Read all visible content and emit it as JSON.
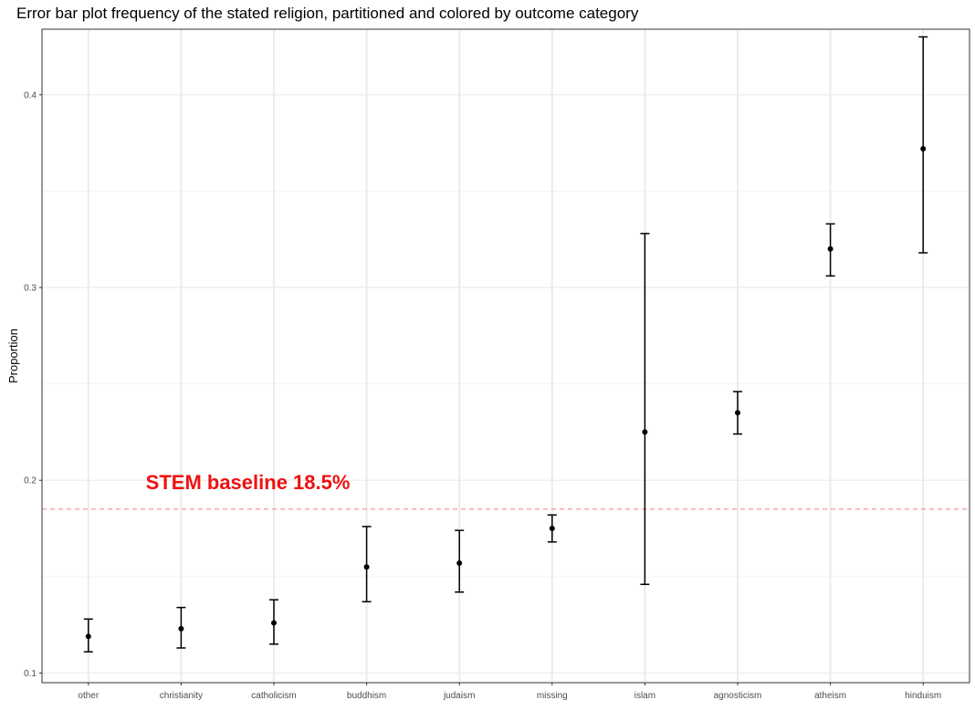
{
  "chart_data": {
    "type": "scatter",
    "title": "Error bar plot frequency of the stated religion, partitioned and colored by outcome category",
    "xlabel": "",
    "ylabel": "Proportion",
    "categories": [
      "other",
      "christianity",
      "catholicism",
      "buddhism",
      "judaism",
      "missing",
      "islam",
      "agnosticism",
      "atheism",
      "hinduism"
    ],
    "series": [
      {
        "values": [
          0.119,
          0.123,
          0.126,
          0.155,
          0.157,
          0.175,
          0.225,
          0.235,
          0.32,
          0.372
        ],
        "lower": [
          0.111,
          0.113,
          0.115,
          0.137,
          0.142,
          0.168,
          0.146,
          0.224,
          0.306,
          0.318
        ],
        "upper": [
          0.128,
          0.134,
          0.138,
          0.176,
          0.174,
          0.182,
          0.328,
          0.246,
          0.333,
          0.43
        ]
      }
    ],
    "ylim": [
      0.095,
      0.434
    ],
    "yticks": [
      0.1,
      0.2,
      0.3,
      0.4
    ],
    "ytick_labels": [
      "0.1",
      "0.2",
      "0.3",
      "0.4"
    ],
    "grid": true,
    "baseline": {
      "value": 0.185,
      "label": "STEM baseline 18.5%",
      "color": "#f08080",
      "label_color": "#ee1111"
    },
    "colors": {
      "point": "#000000",
      "errorbar": "#000000",
      "grid": "#ebebeb",
      "panel_border": "#333333"
    }
  }
}
